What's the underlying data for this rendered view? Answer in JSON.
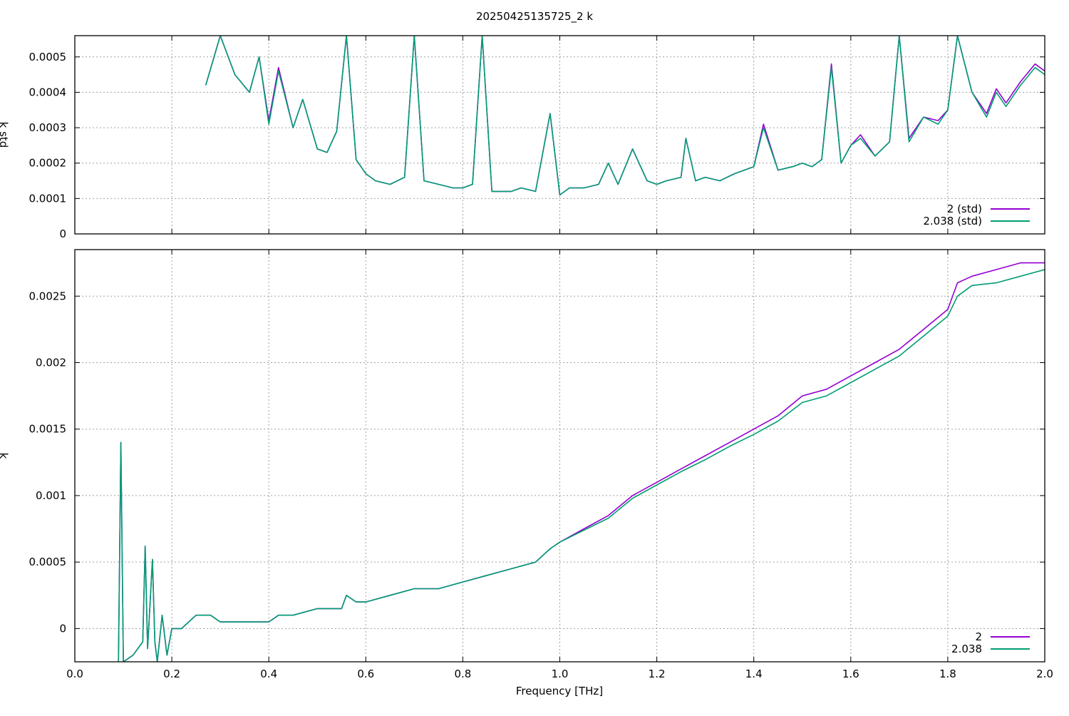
{
  "figure": {
    "title": "20250425135725_2 k",
    "xlabel": "Frequency [THz]"
  },
  "colors": {
    "series_a": "#9400d3",
    "series_b": "#009e73",
    "overlap": "#2e7f86"
  },
  "chart_data": [
    {
      "type": "line",
      "title": "",
      "ylabel": "k std",
      "xlim": [
        0,
        2.0
      ],
      "ylim": [
        0,
        0.00056
      ],
      "x_ticks": [
        "0.0",
        "0.2",
        "0.4",
        "0.6",
        "0.8",
        "1.0",
        "1.2",
        "1.4",
        "1.6",
        "1.8",
        "2.0"
      ],
      "y_ticks": [
        {
          "v": 0,
          "label": "0"
        },
        {
          "v": 0.0001,
          "label": "0.0001"
        },
        {
          "v": 0.0002,
          "label": "0.0002"
        },
        {
          "v": 0.0003,
          "label": "0.0003"
        },
        {
          "v": 0.0004,
          "label": "0.0004"
        },
        {
          "v": 0.0005,
          "label": "0.0005"
        }
      ],
      "grid": true,
      "legend": "bottom-right",
      "x": [
        0.27,
        0.3,
        0.33,
        0.36,
        0.38,
        0.4,
        0.42,
        0.45,
        0.47,
        0.5,
        0.52,
        0.54,
        0.56,
        0.58,
        0.6,
        0.62,
        0.65,
        0.68,
        0.7,
        0.72,
        0.75,
        0.78,
        0.8,
        0.82,
        0.84,
        0.86,
        0.88,
        0.9,
        0.92,
        0.95,
        0.98,
        1.0,
        1.02,
        1.05,
        1.08,
        1.1,
        1.12,
        1.15,
        1.18,
        1.2,
        1.22,
        1.25,
        1.26,
        1.28,
        1.3,
        1.33,
        1.36,
        1.4,
        1.42,
        1.45,
        1.48,
        1.5,
        1.52,
        1.54,
        1.56,
        1.58,
        1.6,
        1.62,
        1.65,
        1.68,
        1.7,
        1.72,
        1.75,
        1.78,
        1.8,
        1.82,
        1.85,
        1.88,
        1.9,
        1.92,
        1.95,
        1.98,
        2.0
      ],
      "series": [
        {
          "name": "2 (std)",
          "values": [
            0.00042,
            0.00056,
            0.00045,
            0.0004,
            0.0005,
            0.00032,
            0.00047,
            0.0003,
            0.00038,
            0.00024,
            0.00023,
            0.00029,
            0.00056,
            0.00021,
            0.00017,
            0.00015,
            0.00014,
            0.00016,
            0.00056,
            0.00015,
            0.00014,
            0.00013,
            0.00013,
            0.00014,
            0.00056,
            0.00012,
            0.00012,
            0.00012,
            0.00013,
            0.00012,
            0.00034,
            0.00011,
            0.00013,
            0.00013,
            0.00014,
            0.0002,
            0.00014,
            0.00024,
            0.00015,
            0.00014,
            0.00015,
            0.00016,
            0.00027,
            0.00015,
            0.00016,
            0.00015,
            0.00017,
            0.00019,
            0.00031,
            0.00018,
            0.00019,
            0.0002,
            0.00019,
            0.00021,
            0.00048,
            0.0002,
            0.00025,
            0.00028,
            0.00022,
            0.00026,
            0.00056,
            0.00027,
            0.00033,
            0.00032,
            0.00035,
            0.00056,
            0.0004,
            0.00034,
            0.00041,
            0.00037,
            0.00043,
            0.00048,
            0.00046
          ]
        },
        {
          "name": "2.038 (std)",
          "values": [
            0.00042,
            0.00056,
            0.00045,
            0.0004,
            0.0005,
            0.00031,
            0.00046,
            0.0003,
            0.00038,
            0.00024,
            0.00023,
            0.00029,
            0.00056,
            0.00021,
            0.00017,
            0.00015,
            0.00014,
            0.00016,
            0.00056,
            0.00015,
            0.00014,
            0.00013,
            0.00013,
            0.00014,
            0.00056,
            0.00012,
            0.00012,
            0.00012,
            0.00013,
            0.00012,
            0.00034,
            0.00011,
            0.00013,
            0.00013,
            0.00014,
            0.0002,
            0.00014,
            0.00024,
            0.00015,
            0.00014,
            0.00015,
            0.00016,
            0.00027,
            0.00015,
            0.00016,
            0.00015,
            0.00017,
            0.00019,
            0.0003,
            0.00018,
            0.00019,
            0.0002,
            0.00019,
            0.00021,
            0.00047,
            0.0002,
            0.00025,
            0.00027,
            0.00022,
            0.00026,
            0.00056,
            0.00026,
            0.00033,
            0.00031,
            0.00035,
            0.00056,
            0.0004,
            0.00033,
            0.0004,
            0.00036,
            0.00042,
            0.00047,
            0.00045
          ]
        }
      ]
    },
    {
      "type": "line",
      "title": "",
      "ylabel": "k",
      "xlim": [
        0,
        2.0
      ],
      "ylim": [
        -0.00025,
        0.00285
      ],
      "x_ticks": [
        "0.0",
        "0.2",
        "0.4",
        "0.6",
        "0.8",
        "1.0",
        "1.2",
        "1.4",
        "1.6",
        "1.8",
        "2.0"
      ],
      "y_ticks": [
        {
          "v": 0,
          "label": "0"
        },
        {
          "v": 0.0005,
          "label": "0.0005"
        },
        {
          "v": 0.001,
          "label": "0.001"
        },
        {
          "v": 0.0015,
          "label": "0.0015"
        },
        {
          "v": 0.002,
          "label": "0.002"
        },
        {
          "v": 0.0025,
          "label": "0.0025"
        }
      ],
      "grid": true,
      "legend": "bottom-right",
      "x": [
        0.09,
        0.095,
        0.1,
        0.12,
        0.14,
        0.145,
        0.15,
        0.16,
        0.165,
        0.17,
        0.18,
        0.19,
        0.2,
        0.22,
        0.25,
        0.28,
        0.3,
        0.33,
        0.36,
        0.4,
        0.42,
        0.45,
        0.5,
        0.55,
        0.56,
        0.58,
        0.6,
        0.65,
        0.7,
        0.75,
        0.8,
        0.85,
        0.9,
        0.95,
        0.98,
        1.0,
        1.05,
        1.1,
        1.15,
        1.2,
        1.25,
        1.3,
        1.35,
        1.4,
        1.45,
        1.5,
        1.55,
        1.6,
        1.65,
        1.7,
        1.75,
        1.8,
        1.82,
        1.85,
        1.9,
        1.95,
        2.0
      ],
      "series": [
        {
          "name": "2",
          "values": [
            -0.00025,
            0.0014,
            -0.00025,
            -0.0002,
            -0.0001,
            0.00062,
            -0.00015,
            0.00052,
            -0.0001,
            -0.00025,
            0.0001,
            -0.0002,
            0.0,
            0.0,
            0.0001,
            0.0001,
            5e-05,
            5e-05,
            5e-05,
            5e-05,
            0.0001,
            0.0001,
            0.00015,
            0.00015,
            0.00025,
            0.0002,
            0.0002,
            0.00025,
            0.0003,
            0.0003,
            0.00035,
            0.0004,
            0.00045,
            0.0005,
            0.0006,
            0.00065,
            0.00075,
            0.00085,
            0.001,
            0.0011,
            0.0012,
            0.0013,
            0.0014,
            0.0015,
            0.0016,
            0.00175,
            0.0018,
            0.0019,
            0.002,
            0.0021,
            0.00225,
            0.0024,
            0.0026,
            0.00265,
            0.0027,
            0.00275,
            0.00275
          ]
        },
        {
          "name": "2.038",
          "values": [
            -0.00025,
            0.0014,
            -0.00025,
            -0.0002,
            -0.0001,
            0.00062,
            -0.00015,
            0.00052,
            -0.0001,
            -0.00025,
            0.0001,
            -0.0002,
            0.0,
            0.0,
            0.0001,
            0.0001,
            5e-05,
            5e-05,
            5e-05,
            5e-05,
            0.0001,
            0.0001,
            0.00015,
            0.00015,
            0.00025,
            0.0002,
            0.0002,
            0.00025,
            0.0003,
            0.0003,
            0.00035,
            0.0004,
            0.00045,
            0.0005,
            0.0006,
            0.00065,
            0.00074,
            0.00083,
            0.00098,
            0.00108,
            0.00118,
            0.00127,
            0.00137,
            0.00146,
            0.00156,
            0.0017,
            0.00175,
            0.00185,
            0.00195,
            0.00205,
            0.0022,
            0.00235,
            0.0025,
            0.00258,
            0.0026,
            0.00265,
            0.0027
          ]
        }
      ]
    }
  ]
}
